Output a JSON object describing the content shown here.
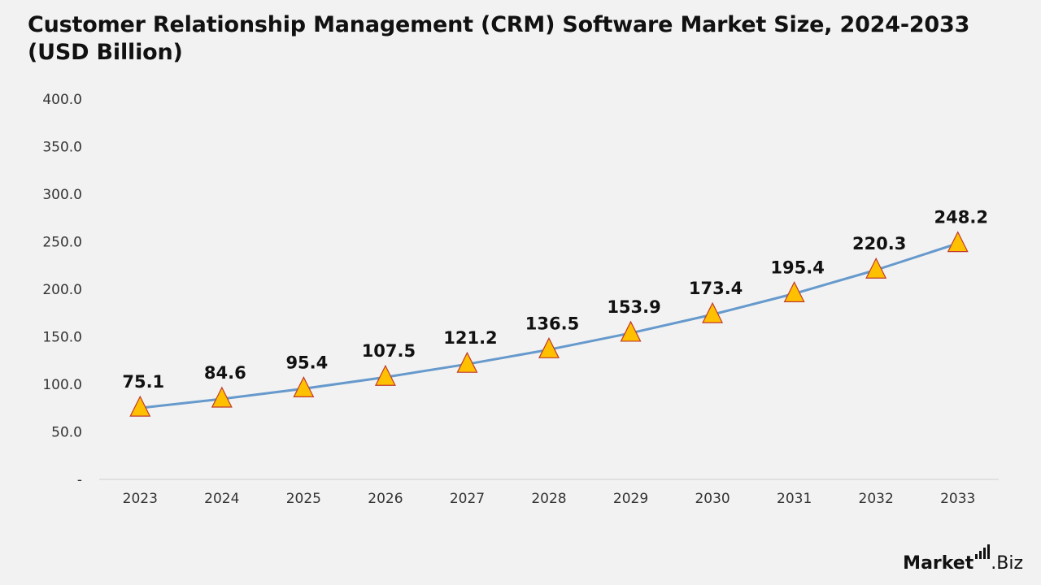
{
  "chart_data": {
    "type": "line",
    "title": "Customer Relationship Management (CRM) Software Market Size, 2024-2033 (USD Billion)",
    "categories": [
      "2023",
      "2024",
      "2025",
      "2026",
      "2027",
      "2028",
      "2029",
      "2030",
      "2031",
      "2032",
      "2033"
    ],
    "series": [
      {
        "values": [
          75.1,
          84.6,
          95.4,
          107.5,
          121.2,
          136.5,
          153.9,
          173.4,
          195.4,
          220.3,
          248.2
        ],
        "data_labels": [
          "75.1",
          "84.6",
          "95.4",
          "107.5",
          "121.2",
          "136.5",
          "153.9",
          "173.4",
          "195.4",
          "220.3",
          "248.2"
        ],
        "line_color": "#6699cc",
        "marker": "triangle",
        "marker_fill": "#ffc000",
        "marker_stroke": "#c0392b"
      }
    ],
    "ylim": [
      0,
      400
    ],
    "yticks": [
      {
        "value": 0,
        "label": "-"
      },
      {
        "value": 50,
        "label": "50.0"
      },
      {
        "value": 100,
        "label": "100.0"
      },
      {
        "value": 150,
        "label": "150.0"
      },
      {
        "value": 200,
        "label": "200.0"
      },
      {
        "value": 250,
        "label": "250.0"
      },
      {
        "value": 300,
        "label": "300.0"
      },
      {
        "value": 350,
        "label": "350.0"
      },
      {
        "value": 400,
        "label": "400.0"
      }
    ],
    "xlabel": "",
    "ylabel": "",
    "grid": false,
    "legend": "none"
  },
  "branding": {
    "logo_text_left": "Market",
    "logo_text_right": ".Biz"
  }
}
